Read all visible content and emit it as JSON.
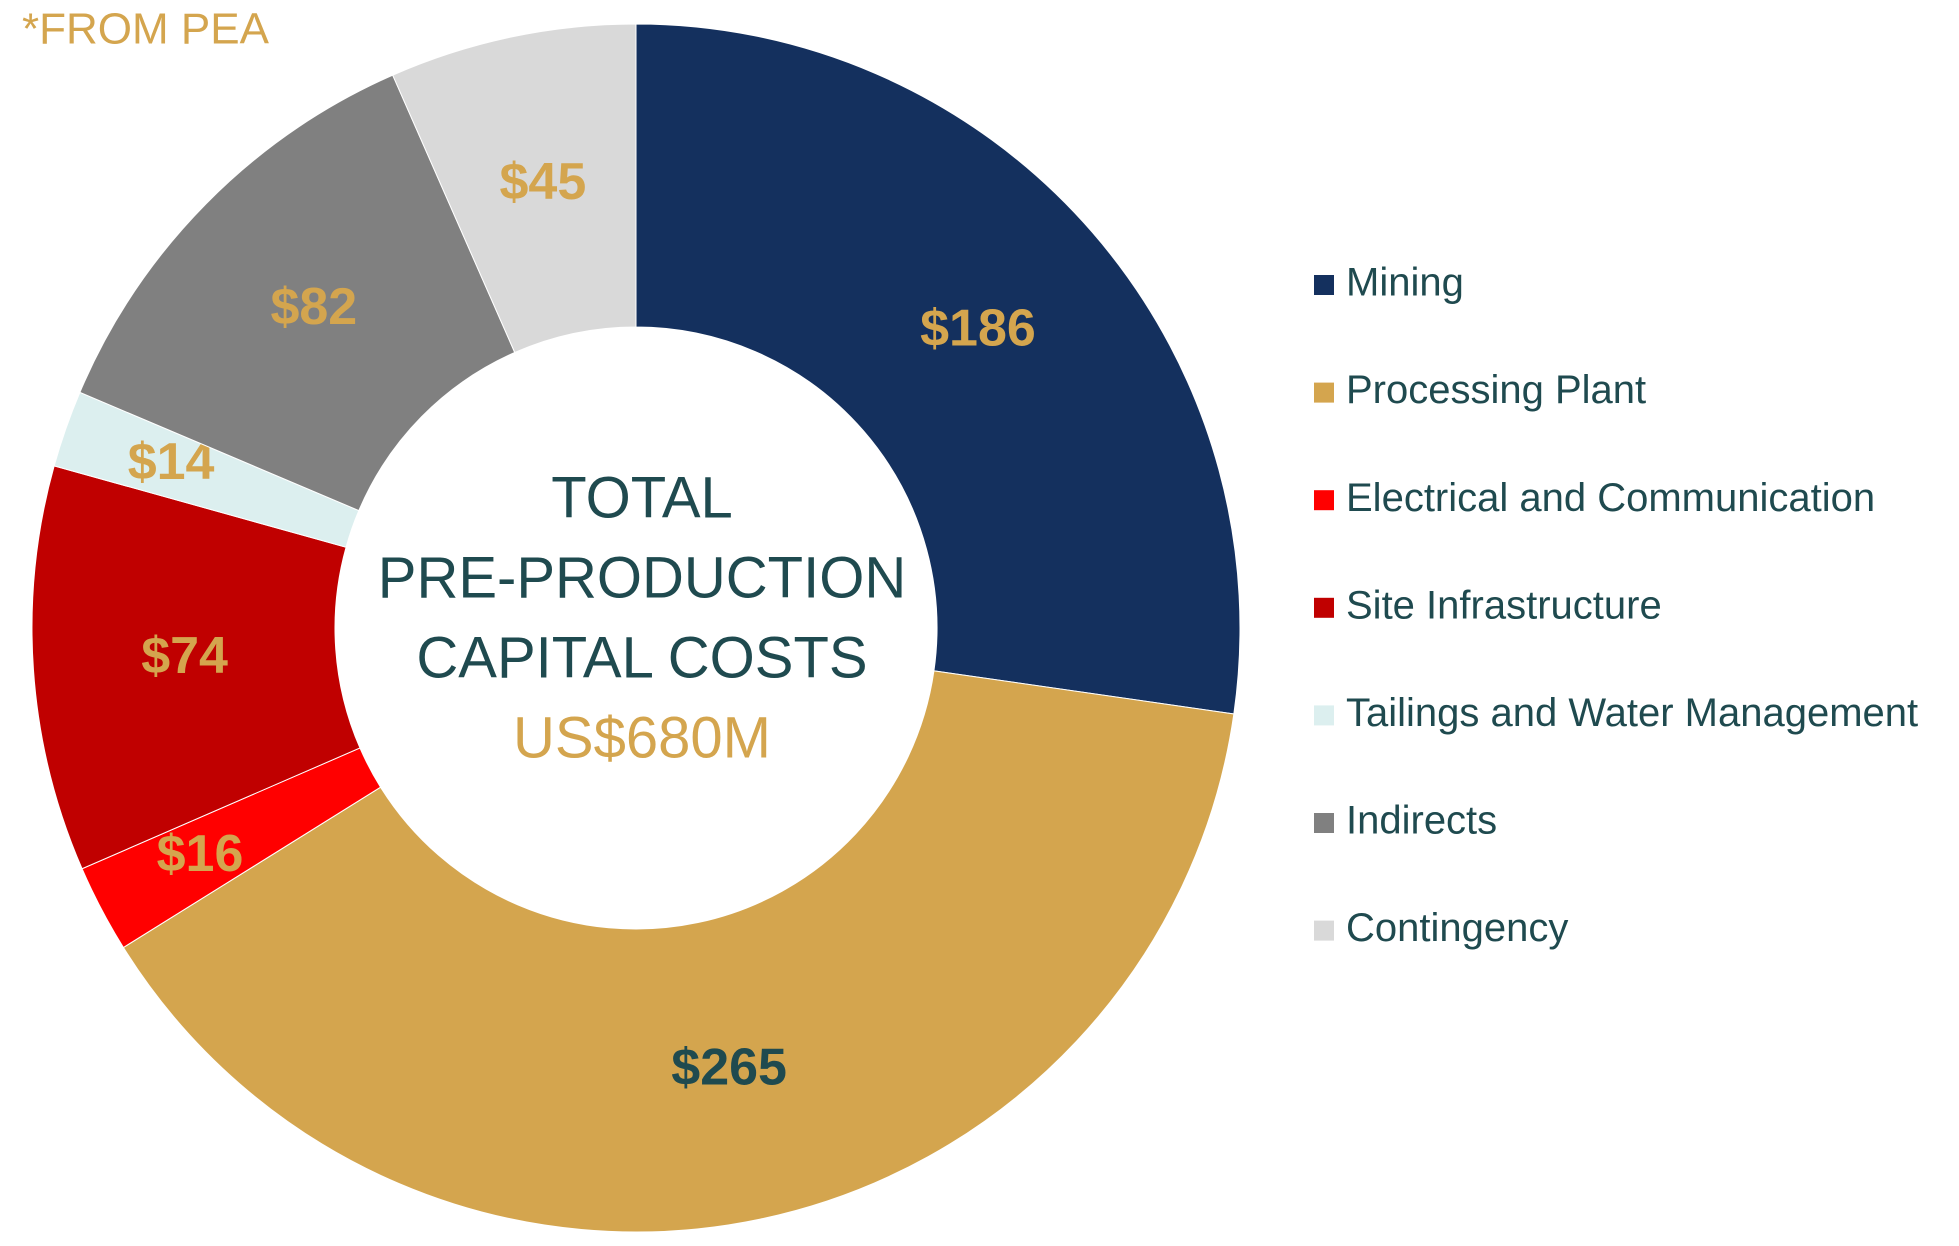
{
  "chart_data": {
    "type": "donut",
    "note": "*FROM PEA",
    "center_text": [
      "TOTAL",
      "PRE-PRODUCTION",
      "CAPITAL COSTS"
    ],
    "center_total": "US$680M",
    "categories": [
      "Mining",
      "Processing Plant",
      "Electrical and Communication",
      "Site Infrastructure",
      "Tailings and Water Management",
      "Indirects",
      "Contingency"
    ],
    "values": [
      186,
      265,
      16,
      74,
      14,
      82,
      45
    ],
    "value_labels": [
      "$186",
      "$265",
      "$16",
      "$74",
      "$14",
      "$82",
      "$45"
    ],
    "colors": [
      "#14305e",
      "#d4a54e",
      "#ff0000",
      "#c00000",
      "#dcefef",
      "#808080",
      "#d9d9d9"
    ],
    "label_colors": [
      "#d4a54e",
      "#1f4a4f",
      "#d4a54e",
      "#d4a54e",
      "#d4a54e",
      "#d4a54e",
      "#d4a54e"
    ],
    "legend": "right"
  }
}
